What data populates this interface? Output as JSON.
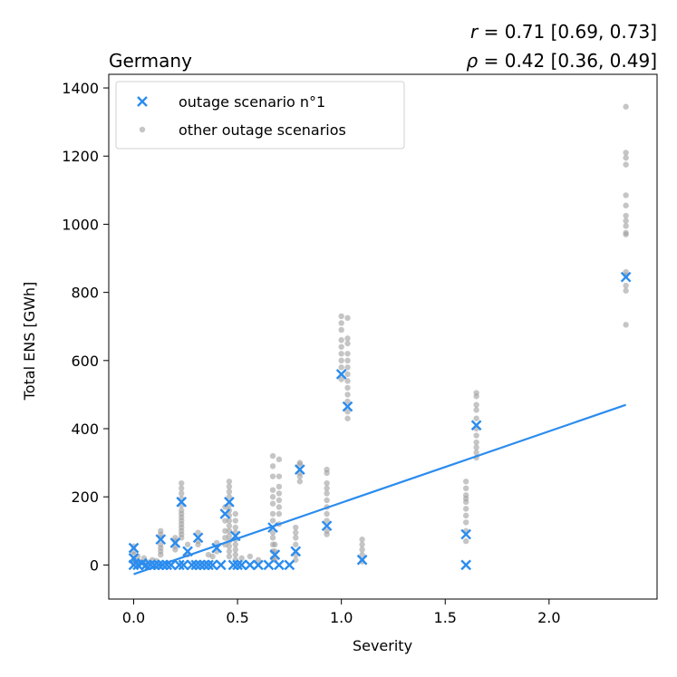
{
  "chart_data": {
    "type": "scatter",
    "title_left": "Germany",
    "stats": {
      "r_symbol": "r",
      "r_text": " = 0.71 [0.69, 0.73]",
      "rho_symbol": "ρ",
      "rho_text": " = 0.42 [0.36, 0.49]"
    },
    "xlabel": "Severity",
    "ylabel": "Total ENS [GWh]",
    "xlim": [
      -0.12,
      2.52
    ],
    "ylim": [
      -100,
      1440
    ],
    "xticks": [
      0.0,
      0.5,
      1.0,
      1.5,
      2.0
    ],
    "xtick_labels": [
      "0.0",
      "0.5",
      "1.0",
      "1.5",
      "2.0"
    ],
    "yticks": [
      0,
      200,
      400,
      600,
      800,
      1000,
      1200,
      1400
    ],
    "ytick_labels": [
      "0",
      "200",
      "400",
      "600",
      "800",
      "1000",
      "1200",
      "1400"
    ],
    "grid": false,
    "legend": {
      "position": "top-left",
      "entries": [
        {
          "name": "outage scenario n°1",
          "marker": "x",
          "color": "#2b8cee"
        },
        {
          "name": "other outage scenarios",
          "marker": "circle",
          "color": "#9e9e9e"
        }
      ]
    },
    "colors": {
      "primary": "#2b8cee",
      "others": "#9e9e9e"
    },
    "series": [
      {
        "name": "outage scenario n°1",
        "points": [
          [
            0.0,
            0
          ],
          [
            0.0,
            20
          ],
          [
            0.0,
            50
          ],
          [
            0.02,
            0
          ],
          [
            0.04,
            5
          ],
          [
            0.06,
            0
          ],
          [
            0.08,
            0
          ],
          [
            0.1,
            0
          ],
          [
            0.12,
            0
          ],
          [
            0.13,
            75
          ],
          [
            0.14,
            0
          ],
          [
            0.16,
            0
          ],
          [
            0.18,
            0
          ],
          [
            0.2,
            65
          ],
          [
            0.22,
            0
          ],
          [
            0.23,
            185
          ],
          [
            0.24,
            0
          ],
          [
            0.26,
            40
          ],
          [
            0.28,
            0
          ],
          [
            0.3,
            0
          ],
          [
            0.31,
            80
          ],
          [
            0.32,
            0
          ],
          [
            0.34,
            0
          ],
          [
            0.36,
            0
          ],
          [
            0.38,
            0
          ],
          [
            0.4,
            50
          ],
          [
            0.42,
            0
          ],
          [
            0.44,
            150
          ],
          [
            0.46,
            185
          ],
          [
            0.48,
            0
          ],
          [
            0.49,
            85
          ],
          [
            0.5,
            0
          ],
          [
            0.52,
            0
          ],
          [
            0.56,
            0
          ],
          [
            0.6,
            0
          ],
          [
            0.65,
            0
          ],
          [
            0.67,
            110
          ],
          [
            0.68,
            30
          ],
          [
            0.7,
            0
          ],
          [
            0.75,
            0
          ],
          [
            0.78,
            40
          ],
          [
            0.8,
            280
          ],
          [
            0.93,
            115
          ],
          [
            1.0,
            560
          ],
          [
            1.03,
            465
          ],
          [
            1.1,
            15
          ],
          [
            1.6,
            0
          ],
          [
            1.6,
            90
          ],
          [
            1.65,
            410
          ],
          [
            2.37,
            845
          ]
        ]
      },
      {
        "name": "other outage scenarios",
        "points": [
          [
            0.0,
            55
          ],
          [
            0.0,
            40
          ],
          [
            0.0,
            30
          ],
          [
            0.0,
            15
          ],
          [
            0.0,
            5
          ],
          [
            0.02,
            25
          ],
          [
            0.03,
            10
          ],
          [
            0.05,
            20
          ],
          [
            0.07,
            8
          ],
          [
            0.09,
            15
          ],
          [
            0.11,
            12
          ],
          [
            0.13,
            100
          ],
          [
            0.13,
            90
          ],
          [
            0.13,
            80
          ],
          [
            0.13,
            60
          ],
          [
            0.13,
            50
          ],
          [
            0.13,
            40
          ],
          [
            0.13,
            30
          ],
          [
            0.2,
            80
          ],
          [
            0.2,
            70
          ],
          [
            0.2,
            55
          ],
          [
            0.2,
            45
          ],
          [
            0.23,
            240
          ],
          [
            0.23,
            225
          ],
          [
            0.23,
            210
          ],
          [
            0.23,
            195
          ],
          [
            0.23,
            175
          ],
          [
            0.23,
            160
          ],
          [
            0.23,
            150
          ],
          [
            0.23,
            140
          ],
          [
            0.23,
            130
          ],
          [
            0.23,
            120
          ],
          [
            0.23,
            110
          ],
          [
            0.23,
            100
          ],
          [
            0.23,
            90
          ],
          [
            0.23,
            80
          ],
          [
            0.26,
            60
          ],
          [
            0.26,
            30
          ],
          [
            0.31,
            95
          ],
          [
            0.31,
            70
          ],
          [
            0.31,
            60
          ],
          [
            0.36,
            30
          ],
          [
            0.38,
            25
          ],
          [
            0.4,
            65
          ],
          [
            0.4,
            40
          ],
          [
            0.44,
            170
          ],
          [
            0.44,
            130
          ],
          [
            0.44,
            100
          ],
          [
            0.44,
            80
          ],
          [
            0.44,
            60
          ],
          [
            0.46,
            245
          ],
          [
            0.46,
            230
          ],
          [
            0.46,
            215
          ],
          [
            0.46,
            200
          ],
          [
            0.46,
            175
          ],
          [
            0.46,
            160
          ],
          [
            0.46,
            145
          ],
          [
            0.46,
            130
          ],
          [
            0.46,
            115
          ],
          [
            0.46,
            100
          ],
          [
            0.46,
            85
          ],
          [
            0.46,
            70
          ],
          [
            0.46,
            55
          ],
          [
            0.46,
            40
          ],
          [
            0.46,
            25
          ],
          [
            0.49,
            150
          ],
          [
            0.49,
            130
          ],
          [
            0.49,
            110
          ],
          [
            0.49,
            95
          ],
          [
            0.49,
            75
          ],
          [
            0.49,
            60
          ],
          [
            0.49,
            45
          ],
          [
            0.49,
            30
          ],
          [
            0.49,
            15
          ],
          [
            0.52,
            20
          ],
          [
            0.56,
            25
          ],
          [
            0.6,
            15
          ],
          [
            0.67,
            320
          ],
          [
            0.67,
            290
          ],
          [
            0.67,
            260
          ],
          [
            0.67,
            220
          ],
          [
            0.67,
            200
          ],
          [
            0.67,
            180
          ],
          [
            0.67,
            150
          ],
          [
            0.67,
            130
          ],
          [
            0.67,
            95
          ],
          [
            0.67,
            80
          ],
          [
            0.67,
            60
          ],
          [
            0.67,
            40
          ],
          [
            0.67,
            20
          ],
          [
            0.68,
            60
          ],
          [
            0.68,
            40
          ],
          [
            0.68,
            15
          ],
          [
            0.7,
            310
          ],
          [
            0.7,
            260
          ],
          [
            0.7,
            230
          ],
          [
            0.7,
            210
          ],
          [
            0.7,
            190
          ],
          [
            0.7,
            170
          ],
          [
            0.7,
            150
          ],
          [
            0.7,
            120
          ],
          [
            0.78,
            110
          ],
          [
            0.78,
            95
          ],
          [
            0.78,
            80
          ],
          [
            0.78,
            60
          ],
          [
            0.78,
            30
          ],
          [
            0.78,
            15
          ],
          [
            0.8,
            300
          ],
          [
            0.8,
            295
          ],
          [
            0.8,
            270
          ],
          [
            0.8,
            260
          ],
          [
            0.8,
            245
          ],
          [
            0.93,
            280
          ],
          [
            0.93,
            270
          ],
          [
            0.93,
            240
          ],
          [
            0.93,
            225
          ],
          [
            0.93,
            210
          ],
          [
            0.93,
            190
          ],
          [
            0.93,
            170
          ],
          [
            0.93,
            150
          ],
          [
            0.93,
            130
          ],
          [
            0.93,
            100
          ],
          [
            0.93,
            90
          ],
          [
            1.0,
            730
          ],
          [
            1.0,
            710
          ],
          [
            1.0,
            690
          ],
          [
            1.0,
            660
          ],
          [
            1.0,
            640
          ],
          [
            1.0,
            620
          ],
          [
            1.0,
            600
          ],
          [
            1.0,
            580
          ],
          [
            1.0,
            545
          ],
          [
            1.03,
            725
          ],
          [
            1.03,
            665
          ],
          [
            1.03,
            650
          ],
          [
            1.03,
            620
          ],
          [
            1.03,
            600
          ],
          [
            1.03,
            580
          ],
          [
            1.03,
            560
          ],
          [
            1.03,
            540
          ],
          [
            1.03,
            520
          ],
          [
            1.03,
            500
          ],
          [
            1.03,
            480
          ],
          [
            1.03,
            450
          ],
          [
            1.03,
            430
          ],
          [
            1.1,
            75
          ],
          [
            1.1,
            60
          ],
          [
            1.1,
            45
          ],
          [
            1.1,
            30
          ],
          [
            1.1,
            10
          ],
          [
            1.6,
            245
          ],
          [
            1.6,
            225
          ],
          [
            1.6,
            205
          ],
          [
            1.6,
            195
          ],
          [
            1.6,
            185
          ],
          [
            1.6,
            165
          ],
          [
            1.6,
            145
          ],
          [
            1.6,
            125
          ],
          [
            1.6,
            100
          ],
          [
            1.6,
            70
          ],
          [
            1.65,
            505
          ],
          [
            1.65,
            495
          ],
          [
            1.65,
            470
          ],
          [
            1.65,
            455
          ],
          [
            1.65,
            430
          ],
          [
            1.65,
            400
          ],
          [
            1.65,
            380
          ],
          [
            1.65,
            360
          ],
          [
            1.65,
            345
          ],
          [
            1.65,
            330
          ],
          [
            1.65,
            315
          ],
          [
            2.37,
            1345
          ],
          [
            2.37,
            1210
          ],
          [
            2.37,
            1195
          ],
          [
            2.37,
            1175
          ],
          [
            2.37,
            1085
          ],
          [
            2.37,
            1055
          ],
          [
            2.37,
            1025
          ],
          [
            2.37,
            1010
          ],
          [
            2.37,
            995
          ],
          [
            2.37,
            975
          ],
          [
            2.37,
            970
          ],
          [
            2.37,
            860
          ],
          [
            2.37,
            850
          ],
          [
            2.37,
            820
          ],
          [
            2.37,
            805
          ],
          [
            2.37,
            705
          ]
        ]
      }
    ],
    "fit_line": {
      "x": [
        0.0,
        2.37
      ],
      "y": [
        -27,
        470
      ]
    }
  }
}
